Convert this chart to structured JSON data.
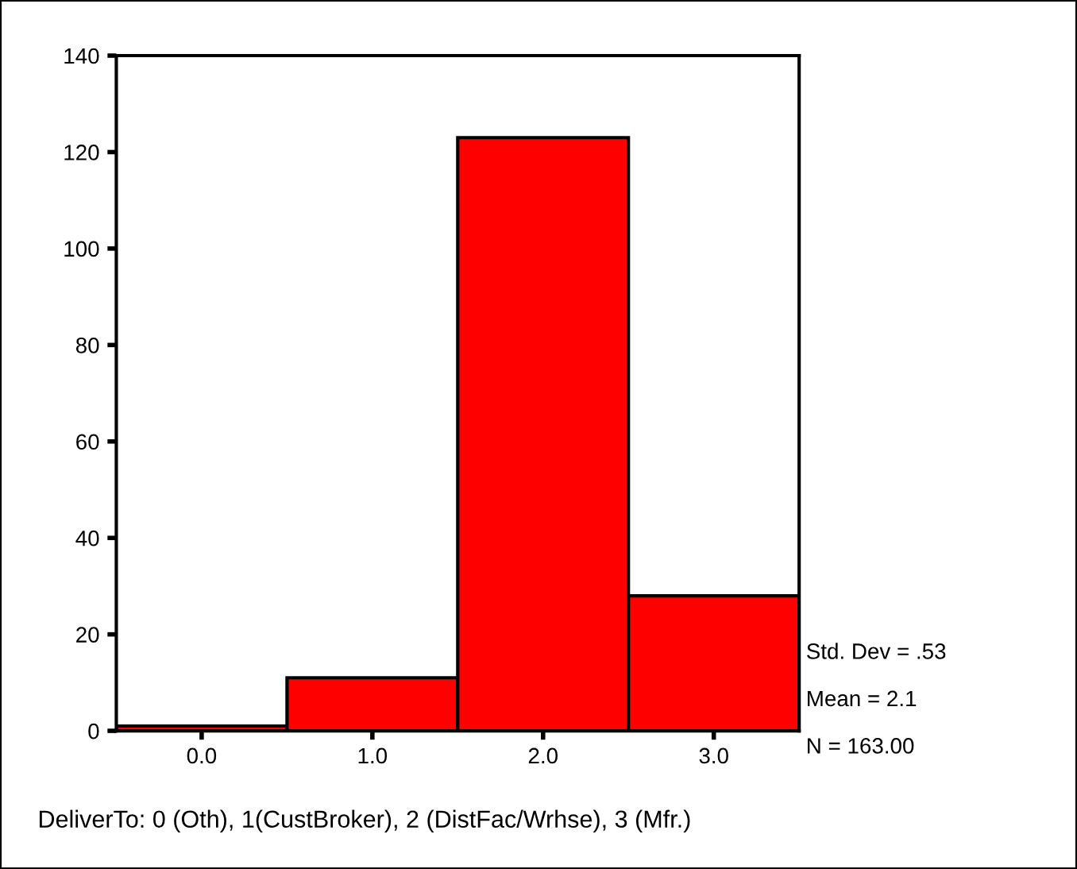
{
  "chart_data": {
    "type": "histogram",
    "bins": [
      -0.5,
      0.5,
      1.5,
      2.5,
      3.5
    ],
    "values": [
      1,
      11,
      123,
      28
    ],
    "color": "#ff0000",
    "xlim": [
      -0.5,
      3.5
    ],
    "xticks": [
      {
        "value": 0,
        "label": "0.0"
      },
      {
        "value": 1,
        "label": "1.0"
      },
      {
        "value": 2,
        "label": "2.0"
      },
      {
        "value": 3,
        "label": "3.0"
      }
    ],
    "ylim": [
      0,
      140
    ],
    "yticks": [
      0,
      20,
      40,
      60,
      80,
      100,
      120,
      140
    ],
    "grid": false,
    "annotations": [
      "Std. Dev = .53",
      "Mean = 2.1",
      "N = 163.00",
      "DeliverTo: 0 (Oth), 1(CustBroker), 2 (DistFac/Wrhse), 3 (Mfr.)"
    ]
  }
}
